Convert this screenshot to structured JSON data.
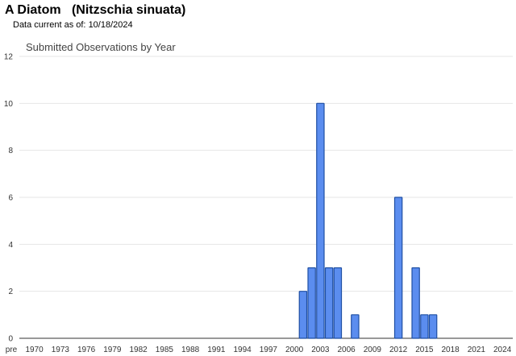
{
  "header": {
    "title": "A Diatom   (Nitzschia sinuata)",
    "data_current_label": "Data current as of:",
    "data_current_date": "10/18/2024"
  },
  "chart_data": {
    "type": "bar",
    "title": "Submitted Observations by Year",
    "xlabel": "",
    "ylabel": "",
    "ylim": [
      0,
      12
    ],
    "y_ticks": [
      0,
      2,
      4,
      6,
      8,
      10,
      12
    ],
    "grid": true,
    "colors": {
      "bar_fill": "#5b8def",
      "bar_stroke": "#1f4fa3"
    },
    "x_tick_labels": [
      "pre",
      "1970",
      "1973",
      "1976",
      "1979",
      "1982",
      "1985",
      "1988",
      "1991",
      "1994",
      "1997",
      "2000",
      "2003",
      "2006",
      "2009",
      "2012",
      "2015",
      "2018",
      "2021",
      "2024"
    ],
    "categories": [
      "2001",
      "2002",
      "2003",
      "2004",
      "2005",
      "2007",
      "2012",
      "2014",
      "2015",
      "2016"
    ],
    "values": [
      2,
      3,
      10,
      3,
      3,
      1,
      6,
      3,
      1,
      1
    ]
  }
}
